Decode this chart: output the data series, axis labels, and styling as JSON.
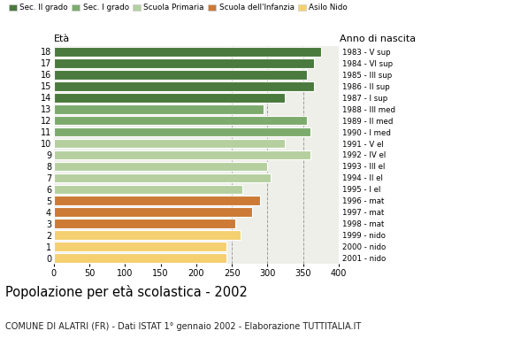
{
  "ages": [
    18,
    17,
    16,
    15,
    14,
    13,
    12,
    11,
    10,
    9,
    8,
    7,
    6,
    5,
    4,
    3,
    2,
    1,
    0
  ],
  "values": [
    375,
    365,
    355,
    365,
    325,
    295,
    355,
    360,
    325,
    360,
    300,
    305,
    265,
    290,
    278,
    255,
    262,
    243,
    243
  ],
  "right_labels": [
    "1983 - V sup",
    "1984 - VI sup",
    "1985 - III sup",
    "1986 - II sup",
    "1987 - I sup",
    "1988 - III med",
    "1989 - II med",
    "1990 - I med",
    "1991 - V el",
    "1992 - IV el",
    "1993 - III el",
    "1994 - II el",
    "1995 - I el",
    "1996 - mat",
    "1997 - mat",
    "1998 - mat",
    "1999 - nido",
    "2000 - nido",
    "2001 - nido"
  ],
  "colors": [
    "#4a7a3d",
    "#4a7a3d",
    "#4a7a3d",
    "#4a7a3d",
    "#4a7a3d",
    "#7dab6e",
    "#7dab6e",
    "#7dab6e",
    "#b5cf9f",
    "#b5cf9f",
    "#b5cf9f",
    "#b5cf9f",
    "#b5cf9f",
    "#cc7a35",
    "#cc7a35",
    "#cc7a35",
    "#f5d070",
    "#f5d070",
    "#f5d070"
  ],
  "legend_labels": [
    "Sec. II grado",
    "Sec. I grado",
    "Scuola Primaria",
    "Scuola dell'Infanzia",
    "Asilo Nido"
  ],
  "legend_colors": [
    "#4a7a3d",
    "#7dab6e",
    "#b5cf9f",
    "#cc7a35",
    "#f5d070"
  ],
  "title": "Popolazione per età scolastica - 2002",
  "subtitle": "COMUNE DI ALATRI (FR) - Dati ISTAT 1° gennaio 2002 - Elaborazione TUTTITALIA.IT",
  "xlim": [
    0,
    400
  ],
  "xticks": [
    0,
    50,
    100,
    150,
    200,
    250,
    300,
    350,
    400
  ],
  "grid_values": [
    250,
    300,
    350
  ],
  "bar_height": 0.82,
  "background_color": "#ffffff",
  "plot_bg_color": "#efefea"
}
